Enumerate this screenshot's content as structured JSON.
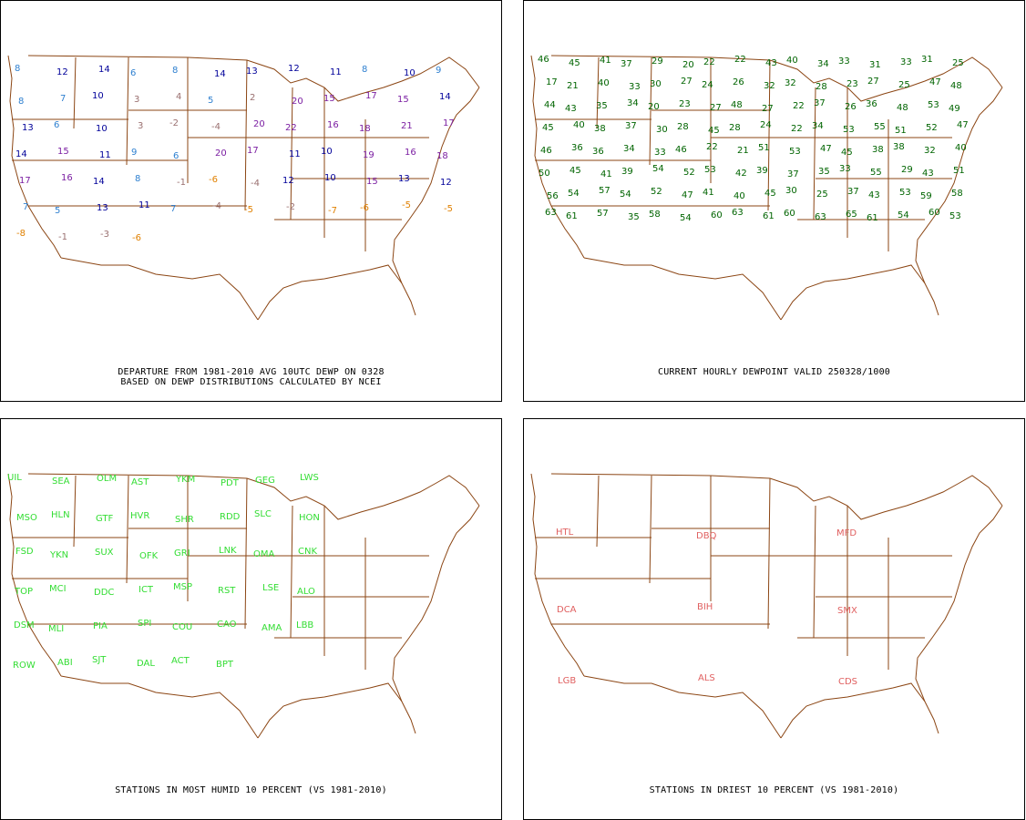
{
  "colors": {
    "map_lines": "#8b4513",
    "departure_high": "#000099",
    "departure_mid": "#2f80d0",
    "departure_purple": "#7b1fa2",
    "departure_neutral": "#9a7070",
    "departure_low": "#e08000",
    "dewpoint": "#006400",
    "humid_station": "#33dd33",
    "dry_station": "#e06060"
  },
  "panels": {
    "departure": {
      "caption_line1": "DEPARTURE FROM 1981-2010 AVG 10UTC DEWP ON 0328",
      "caption_line2": "BASED ON DEWP DISTRIBUTIONS CALCULATED BY NCEI",
      "values": [
        {
          "t": "8",
          "c": "mid"
        },
        {
          "t": "12",
          "c": "high"
        },
        {
          "t": "14",
          "c": "high"
        },
        {
          "t": "6",
          "c": "mid"
        },
        {
          "t": "8",
          "c": "mid"
        },
        {
          "t": "14",
          "c": "high"
        },
        {
          "t": "13",
          "c": "high"
        },
        {
          "t": "12",
          "c": "high"
        },
        {
          "t": "11",
          "c": "high"
        },
        {
          "t": "8",
          "c": "mid"
        },
        {
          "t": "10",
          "c": "high"
        },
        {
          "t": "9",
          "c": "mid"
        },
        {
          "t": "8",
          "c": "mid"
        },
        {
          "t": "7",
          "c": "mid"
        },
        {
          "t": "10",
          "c": "high"
        },
        {
          "t": "3",
          "c": "neutral"
        },
        {
          "t": "4",
          "c": "neutral"
        },
        {
          "t": "5",
          "c": "mid"
        },
        {
          "t": "2",
          "c": "neutral"
        },
        {
          "t": "20",
          "c": "purple"
        },
        {
          "t": "15",
          "c": "purple"
        },
        {
          "t": "17",
          "c": "purple"
        },
        {
          "t": "15",
          "c": "purple"
        },
        {
          "t": "14",
          "c": "high"
        },
        {
          "t": "13",
          "c": "high"
        },
        {
          "t": "6",
          "c": "mid"
        },
        {
          "t": "10",
          "c": "high"
        },
        {
          "t": "3",
          "c": "neutral"
        },
        {
          "t": "-2",
          "c": "neutral"
        },
        {
          "t": "-4",
          "c": "neutral"
        },
        {
          "t": "20",
          "c": "purple"
        },
        {
          "t": "22",
          "c": "purple"
        },
        {
          "t": "16",
          "c": "purple"
        },
        {
          "t": "18",
          "c": "purple"
        },
        {
          "t": "21",
          "c": "purple"
        },
        {
          "t": "17",
          "c": "purple"
        },
        {
          "t": "14",
          "c": "high"
        },
        {
          "t": "15",
          "c": "purple"
        },
        {
          "t": "11",
          "c": "high"
        },
        {
          "t": "9",
          "c": "mid"
        },
        {
          "t": "6",
          "c": "mid"
        },
        {
          "t": "20",
          "c": "purple"
        },
        {
          "t": "17",
          "c": "purple"
        },
        {
          "t": "11",
          "c": "high"
        },
        {
          "t": "10",
          "c": "high"
        },
        {
          "t": "19",
          "c": "purple"
        },
        {
          "t": "16",
          "c": "purple"
        },
        {
          "t": "18",
          "c": "purple"
        },
        {
          "t": "17",
          "c": "purple"
        },
        {
          "t": "16",
          "c": "purple"
        },
        {
          "t": "14",
          "c": "high"
        },
        {
          "t": "8",
          "c": "mid"
        },
        {
          "t": "-1",
          "c": "neutral"
        },
        {
          "t": "-6",
          "c": "low"
        },
        {
          "t": "-4",
          "c": "neutral"
        },
        {
          "t": "12",
          "c": "high"
        },
        {
          "t": "10",
          "c": "high"
        },
        {
          "t": "15",
          "c": "purple"
        },
        {
          "t": "13",
          "c": "high"
        },
        {
          "t": "12",
          "c": "high"
        },
        {
          "t": "7",
          "c": "mid"
        },
        {
          "t": "5",
          "c": "mid"
        },
        {
          "t": "13",
          "c": "high"
        },
        {
          "t": "11",
          "c": "high"
        },
        {
          "t": "7",
          "c": "mid"
        },
        {
          "t": "-4",
          "c": "neutral"
        },
        {
          "t": "-5",
          "c": "low"
        },
        {
          "t": "-2",
          "c": "neutral"
        },
        {
          "t": "-7",
          "c": "low"
        },
        {
          "t": "-6",
          "c": "low"
        },
        {
          "t": "-5",
          "c": "low"
        },
        {
          "t": "-5",
          "c": "low"
        },
        {
          "t": "-8",
          "c": "low"
        },
        {
          "t": "-1",
          "c": "neutral"
        },
        {
          "t": "-3",
          "c": "neutral"
        },
        {
          "t": "-6",
          "c": "low"
        }
      ]
    },
    "dewpoint": {
      "caption": "CURRENT HOURLY DEWPOINT VALID 250328/1000",
      "values": [
        "46",
        "45",
        "41",
        "37",
        "29",
        "20",
        "22",
        "22",
        "43",
        "40",
        "34",
        "33",
        "31",
        "33",
        "31",
        "25",
        "17",
        "21",
        "40",
        "33",
        "30",
        "27",
        "24",
        "26",
        "32",
        "32",
        "28",
        "23",
        "27",
        "25",
        "47",
        "48",
        "44",
        "43",
        "35",
        "34",
        "20",
        "23",
        "27",
        "48",
        "27",
        "22",
        "37",
        "26",
        "36",
        "48",
        "53",
        "49",
        "45",
        "40",
        "38",
        "37",
        "30",
        "28",
        "45",
        "28",
        "24",
        "22",
        "34",
        "53",
        "55",
        "51",
        "52",
        "47",
        "46",
        "36",
        "36",
        "34",
        "33",
        "46",
        "22",
        "21",
        "51",
        "53",
        "47",
        "45",
        "38",
        "38",
        "32",
        "40",
        "50",
        "45",
        "41",
        "39",
        "54",
        "52",
        "53",
        "42",
        "39",
        "37",
        "35",
        "33",
        "55",
        "29",
        "43",
        "51",
        "56",
        "54",
        "57",
        "54",
        "52",
        "47",
        "41",
        "40",
        "45",
        "30",
        "25",
        "37",
        "43",
        "53",
        "59",
        "58",
        "63",
        "61",
        "57",
        "35",
        "58",
        "54",
        "60",
        "63",
        "61",
        "60",
        "63",
        "65",
        "61",
        "54",
        "60",
        "53"
      ]
    },
    "humid": {
      "caption": "STATIONS IN MOST HUMID 10 PERCENT (VS 1981-2010)",
      "stations": [
        "UIL",
        "SEA",
        "OLM",
        "AST",
        "YKM",
        "PDT",
        "GEG",
        "LWS",
        "MSO",
        "HLN",
        "GTF",
        "HVR",
        "SHR",
        "RDD",
        "SLC",
        "HON",
        "FSD",
        "YKN",
        "SUX",
        "OFK",
        "GRI",
        "LNK",
        "OMA",
        "CNK",
        "TOP",
        "MCI",
        "DDC",
        "ICT",
        "MSP",
        "RST",
        "LSE",
        "ALO",
        "DSM",
        "MLI",
        "PIA",
        "SPI",
        "COU",
        "CAO",
        "AMA",
        "LBB",
        "ROW",
        "ABI",
        "SJT",
        "DAL",
        "ACT",
        "BPT"
      ]
    },
    "dry": {
      "caption": "STATIONS IN DRIEST 10 PERCENT (VS 1981-2010)",
      "stations": [
        "HTL",
        "DBQ",
        "MFD",
        "DCA",
        "BIH",
        "SMX",
        "LGB",
        "ALS",
        "CDS"
      ]
    }
  }
}
